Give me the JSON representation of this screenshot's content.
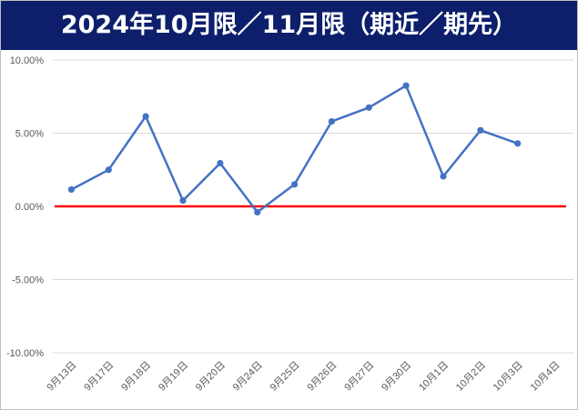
{
  "chart_data": {
    "type": "line",
    "title": "2024年10月限／11月限（期近／期先）",
    "xlabel": "",
    "ylabel": "",
    "categories": [
      "9月13日",
      "9月17日",
      "9月18日",
      "9月19日",
      "9月20日",
      "9月24日",
      "9月25日",
      "9月26日",
      "9月27日",
      "9月30日",
      "10月1日",
      "10月2日",
      "10月3日",
      "10月4日"
    ],
    "series": [
      {
        "values": [
          1.15,
          2.5,
          6.15,
          0.4,
          2.95,
          -0.4,
          1.5,
          5.8,
          6.75,
          8.25,
          2.05,
          5.2,
          4.3,
          null
        ]
      }
    ],
    "y_ticks": [
      "10.00%",
      "5.00%",
      "0.00%",
      "-5.00%",
      "-10.00%"
    ],
    "ylim": [
      -10,
      10
    ],
    "grid": true,
    "legend": "none",
    "colors": {
      "line": "#4472c4",
      "zero_line": "#ff0000",
      "title_bg": "#0d1f6b",
      "grid": "#d9d9d9"
    }
  }
}
